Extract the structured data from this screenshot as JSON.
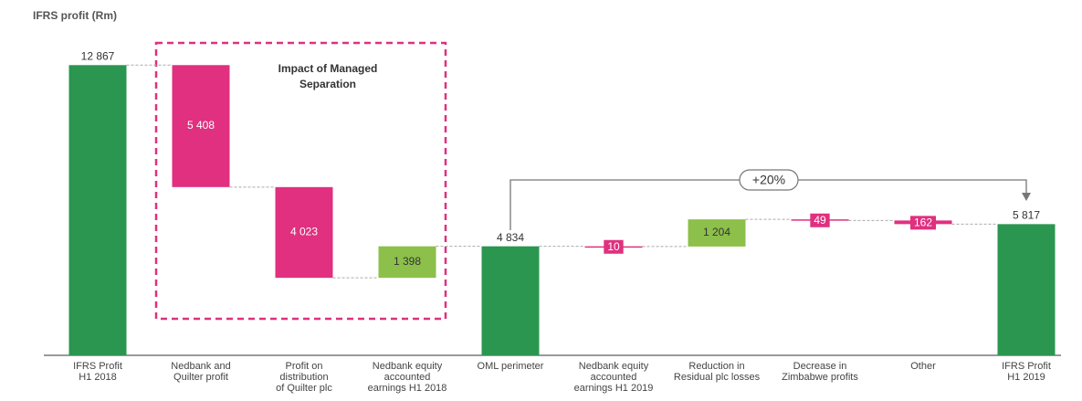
{
  "chart_data": {
    "type": "waterfall",
    "title": "IFRS profit (Rm)",
    "categories": [
      "IFRS Profit\nH1 2018",
      "Nedbank and\nQuilter profit",
      "Profit on\ndistribution\nof Quilter plc",
      "Nedbank equity\naccounted\nearnings H1 2018",
      "OML perimeter",
      "Nedbank equity\naccounted\nearnings H1 2019",
      "Reduction in\nResidual plc losses",
      "Decrease in\nZimbabwe profits",
      "Other",
      "IFRS Profit\nH1 2019"
    ],
    "values": [
      12867,
      -5408,
      -4023,
      1398,
      4834,
      -10,
      1204,
      -49,
      -162,
      5817
    ],
    "value_labels": [
      "12 867",
      "5 408",
      "4 023",
      "1 398",
      "4 834",
      "10",
      "1 204",
      "49",
      "162",
      "5 817"
    ],
    "measure": [
      "total",
      "relative",
      "relative",
      "relative",
      "total",
      "relative",
      "relative",
      "relative",
      "relative",
      "total"
    ],
    "colors": {
      "total": "#2a9650",
      "increase": "#8cc04a",
      "decrease": "#e0307f"
    },
    "ylim": [
      0,
      13000
    ],
    "annotations": {
      "group_box": "Impact of Managed\nSeparation",
      "change": "+20%"
    }
  }
}
